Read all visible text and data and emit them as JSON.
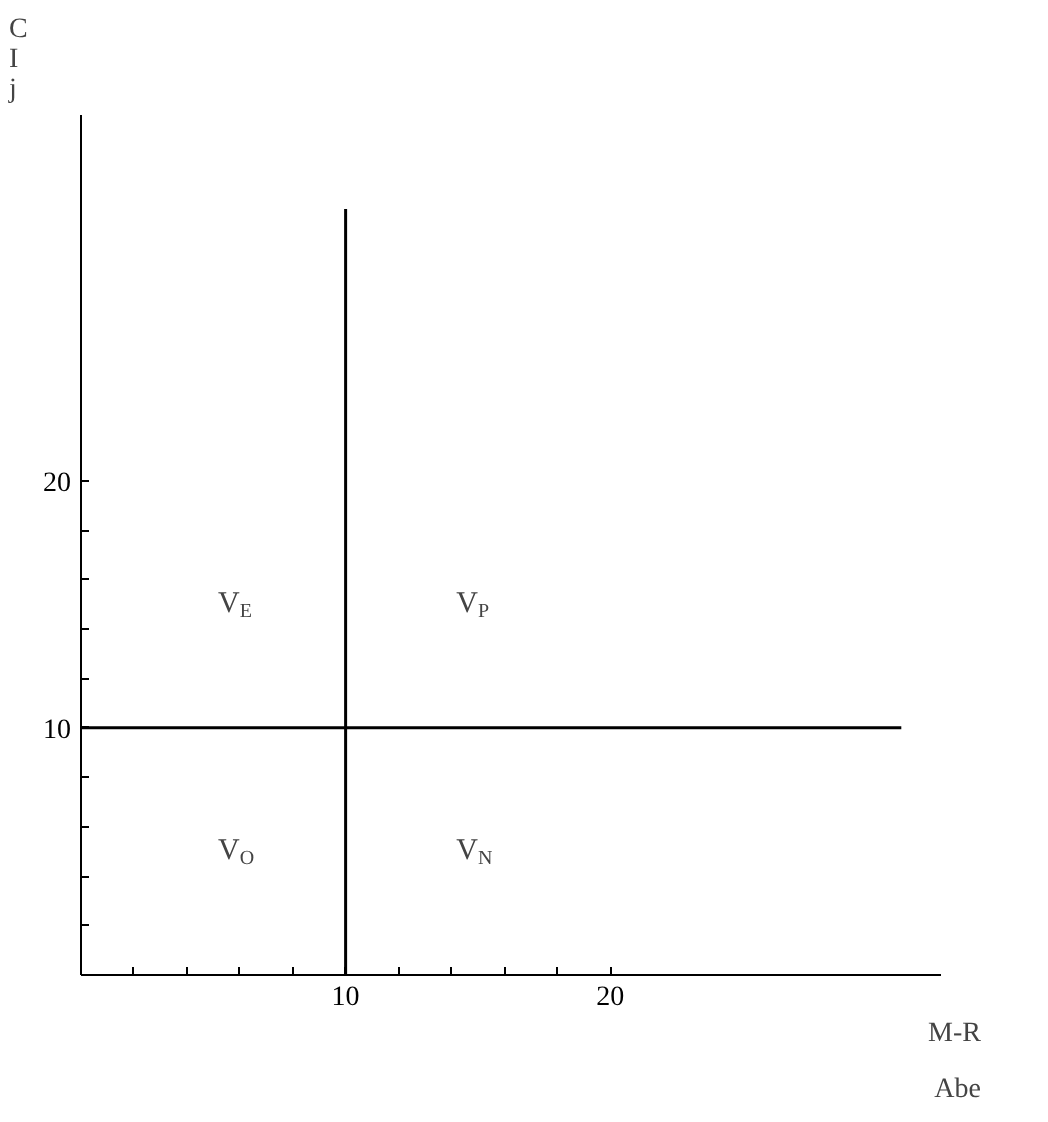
{
  "chart_data": {
    "type": "line",
    "xlabel": "M-R",
    "ylabel": "CIj",
    "series": [
      {
        "x": [
          10,
          10
        ],
        "values": [
          0,
          31
        ],
        "color": "#000000"
      },
      {
        "x": [
          0,
          31
        ],
        "values": [
          10,
          10
        ],
        "color": "#000000"
      }
    ],
    "xlim": [
      0,
      32.5
    ],
    "ylim": [
      0,
      34.8
    ],
    "xticks": [
      {
        "value": 2,
        "label": null
      },
      {
        "value": 4,
        "label": null
      },
      {
        "value": 6,
        "label": null
      },
      {
        "value": 8,
        "label": null
      },
      10,
      {
        "value": 12,
        "label": null
      },
      {
        "value": 14,
        "label": null
      },
      {
        "value": 16,
        "label": null
      },
      {
        "value": 18,
        "label": null
      },
      20
    ],
    "yticks": [
      {
        "value": 2,
        "label": null
      },
      {
        "value": 4,
        "label": null
      },
      {
        "value": 6,
        "label": null
      },
      {
        "value": 8,
        "label": null
      },
      10,
      {
        "value": 12,
        "label": null
      },
      {
        "value": 14,
        "label": null
      },
      {
        "value": 16,
        "label": null
      },
      {
        "value": 18,
        "label": null
      },
      20
    ],
    "annotations": [
      "V$_{E}$",
      "V$_{P}$",
      "V$_{O}$",
      "V$_{N}$",
      "Abe"
    ],
    "grid": false,
    "marker": "none",
    "line_style": "solid"
  }
}
